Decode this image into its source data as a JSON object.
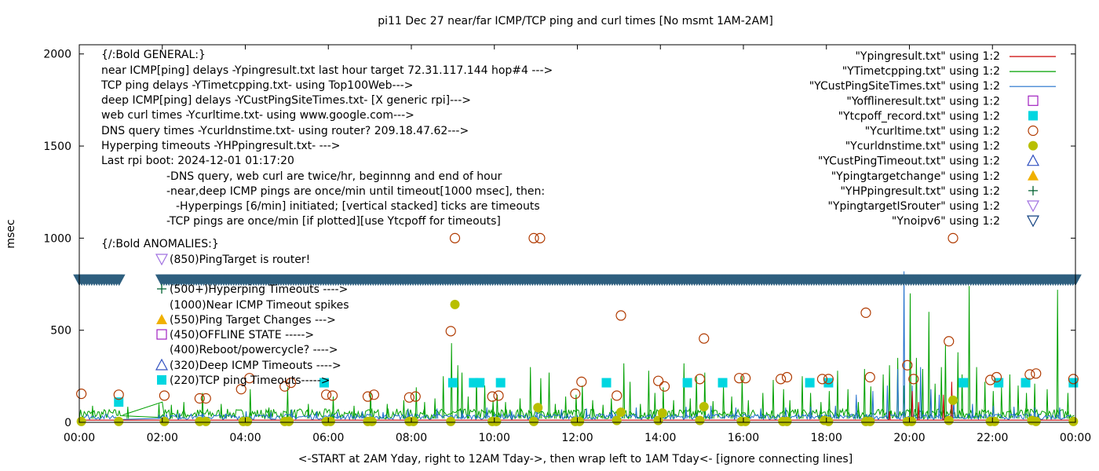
{
  "chart_data": {
    "type": "line",
    "title": "pi11 Dec 27  near/far ICMP/TCP ping and curl times [No msmt 1AM-2AM]",
    "xlabel": "<-START at 2AM Yday, right to 12AM Tday->, then wrap left to 1AM Tday<- [ignore connecting lines]",
    "ylabel": "msec",
    "xlim": [
      0,
      24
    ],
    "ylim": [
      0,
      2050
    ],
    "xticks": [
      {
        "v": 0,
        "label": "00:00"
      },
      {
        "v": 2,
        "label": "02:00"
      },
      {
        "v": 4,
        "label": "04:00"
      },
      {
        "v": 6,
        "label": "06:00"
      },
      {
        "v": 8,
        "label": "08:00"
      },
      {
        "v": 10,
        "label": "10:00"
      },
      {
        "v": 12,
        "label": "12:00"
      },
      {
        "v": 14,
        "label": "14:00"
      },
      {
        "v": 16,
        "label": "16:00"
      },
      {
        "v": 18,
        "label": "18:00"
      },
      {
        "v": 20,
        "label": "20:00"
      },
      {
        "v": 22,
        "label": "22:00"
      },
      {
        "v": 24,
        "label": "00:00"
      }
    ],
    "yticks": [
      {
        "v": 0,
        "label": "0"
      },
      {
        "v": 500,
        "label": "500"
      },
      {
        "v": 1000,
        "label": "1000"
      },
      {
        "v": 1500,
        "label": "1500"
      },
      {
        "v": 2000,
        "label": "2000"
      }
    ],
    "legend_position": "top-right",
    "legend": [
      {
        "label": "\"Ypingresult.txt\" using 1:2",
        "kind": "line",
        "color": "#cc0000"
      },
      {
        "label": "\"YTimetcpping.txt\" using 1:2",
        "kind": "line",
        "color": "#00a000"
      },
      {
        "label": "\"YCustPingSiteTimes.txt\" using 1:2",
        "kind": "line",
        "color": "#1f6fcc"
      },
      {
        "label": "\"Yofflineresult.txt\" using 1:2",
        "kind": "square-open",
        "color": "#a020c0"
      },
      {
        "label": "\"Ytcpoff_record.txt\" using 1:2",
        "kind": "square-filled",
        "color": "#00d6e0"
      },
      {
        "label": "\"Ycurltime.txt\" using 1:2",
        "kind": "circle-open",
        "color": "#b03a00"
      },
      {
        "label": "\"Ycurldnstime.txt\" using 1:2",
        "kind": "circle-filled",
        "color": "#b8bf00"
      },
      {
        "label": "\"YCustPingTimeout.txt\" using 1:2",
        "kind": "triangle-up-open",
        "color": "#3050c0"
      },
      {
        "label": "\"Ypingtargetchange\" using 1:2",
        "kind": "triangle-up-filled",
        "color": "#f0b000"
      },
      {
        "label": "\"YHPpingresult.txt\" using 1:2",
        "kind": "plus",
        "color": "#006030"
      },
      {
        "label": "\"YpingtargetISrouter\" using 1:2",
        "kind": "triangle-down-open",
        "color": "#a070e0"
      },
      {
        "label": "\"Ynoipv6\" using 1:2",
        "kind": "triangle-down-open",
        "color": "#104080"
      }
    ],
    "annotations": [
      {
        "text": "{/:Bold GENERAL:}",
        "ax": 129,
        "ay": 74
      },
      {
        "text": "near ICMP[ping] delays -Ypingresult.txt last hour target 72.31.117.144 hop#4 --->",
        "ax": 129,
        "ay": 94
      },
      {
        "text": "TCP ping delays -YTimetcpping.txt- using Top100Web--->",
        "ax": 129,
        "ay": 113
      },
      {
        "text": "deep ICMP[ping] delays -YCustPingSiteTimes.txt- [X generic rpi]--->",
        "ax": 129,
        "ay": 132
      },
      {
        "text": "web curl times -Ycurltime.txt- using www.google.com--->",
        "ax": 129,
        "ay": 151
      },
      {
        "text": "DNS query times -Ycurldnstime.txt- using router? 209.18.47.62--->",
        "ax": 129,
        "ay": 171
      },
      {
        "text": "Hyperping timeouts -YHPpingresult.txt- --->",
        "ax": 129,
        "ay": 190
      },
      {
        "text": "Last rpi boot: 2024-12-01 01:17:20",
        "ax": 129,
        "ay": 209
      },
      {
        "text": "-DNS query, web curl are twice/hr, beginnng and end of hour",
        "ax": 212,
        "ay": 229
      },
      {
        "text": "-near,deep ICMP pings are once/min until timeout[1000 msec], then:",
        "ax": 212,
        "ay": 248
      },
      {
        "text": "-Hyperpings [6/min] initiated; [vertical stacked] ticks are timeouts",
        "ax": 224,
        "ay": 267
      },
      {
        "text": "-TCP pings are once/min [if plotted][use Ytcpoff for timeouts]",
        "ax": 212,
        "ay": 286
      },
      {
        "text": "{/:Bold ANOMALIES:}",
        "ax": 129,
        "ay": 315
      },
      {
        "text": "(850)PingTarget is router!",
        "ax": 216,
        "ay": 335,
        "marker": "triangle-down-open",
        "mcolor": "#a070e0"
      },
      {
        "text": "(500+)Hyperping Timeouts ---->",
        "ax": 216,
        "ay": 373,
        "marker": "plus",
        "mcolor": "#006030"
      },
      {
        "text": "(1000)Near ICMP Timeout spikes",
        "ax": 216,
        "ay": 393
      },
      {
        "text": "(550)Ping Target Changes --->",
        "ax": 216,
        "ay": 412,
        "marker": "triangle-up-filled",
        "mcolor": "#f0b000"
      },
      {
        "text": "(450)OFFLINE STATE ----->",
        "ax": 216,
        "ay": 431,
        "marker": "square-open",
        "mcolor": "#a020c0"
      },
      {
        "text": "(400)Reboot/powercycle? ---->",
        "ax": 216,
        "ay": 450
      },
      {
        "text": "(320)Deep ICMP Timeouts ---->",
        "ax": 216,
        "ay": 470,
        "marker": "triangle-up-open",
        "mcolor": "#3050c0"
      },
      {
        "text": "(220)TCP ping Timeouts----->",
        "ax": 216,
        "ay": 489,
        "marker": "square-filled",
        "mcolor": "#00d6e0"
      }
    ],
    "ipv6_band": {
      "y": 775,
      "color": "#2e5f7f",
      "gap": [
        1.02,
        1.95
      ]
    },
    "curltime": [
      [
        0.05,
        155
      ],
      [
        0.95,
        150
      ],
      [
        2.05,
        145
      ],
      [
        2.9,
        130
      ],
      [
        3.05,
        130
      ],
      [
        3.9,
        180
      ],
      [
        4.1,
        240
      ],
      [
        4.95,
        195
      ],
      [
        5.1,
        215
      ],
      [
        5.95,
        150
      ],
      [
        6.1,
        145
      ],
      [
        6.95,
        140
      ],
      [
        7.1,
        150
      ],
      [
        7.95,
        135
      ],
      [
        8.1,
        140
      ],
      [
        8.95,
        495
      ],
      [
        9.05,
        1000
      ],
      [
        9.95,
        140
      ],
      [
        10.1,
        145
      ],
      [
        10.95,
        1000
      ],
      [
        11.1,
        1000
      ],
      [
        11.95,
        155
      ],
      [
        12.1,
        220
      ],
      [
        12.95,
        145
      ],
      [
        13.05,
        580
      ],
      [
        13.95,
        225
      ],
      [
        14.1,
        195
      ],
      [
        14.95,
        235
      ],
      [
        15.05,
        455
      ],
      [
        15.9,
        240
      ],
      [
        16.05,
        240
      ],
      [
        16.9,
        235
      ],
      [
        17.05,
        245
      ],
      [
        17.9,
        235
      ],
      [
        18.05,
        235
      ],
      [
        18.95,
        595
      ],
      [
        19.05,
        245
      ],
      [
        19.95,
        310
      ],
      [
        20.1,
        235
      ],
      [
        20.95,
        440
      ],
      [
        21.05,
        1000
      ],
      [
        21.95,
        230
      ],
      [
        22.1,
        245
      ],
      [
        22.9,
        260
      ],
      [
        23.05,
        265
      ],
      [
        23.95,
        235
      ]
    ],
    "dnstime": [
      [
        0.05,
        5
      ],
      [
        0.95,
        5
      ],
      [
        2.05,
        5
      ],
      [
        2.9,
        5
      ],
      [
        3.05,
        5
      ],
      [
        3.95,
        5
      ],
      [
        4.05,
        5
      ],
      [
        4.95,
        5
      ],
      [
        5.05,
        5
      ],
      [
        5.95,
        5
      ],
      [
        6.05,
        5
      ],
      [
        6.95,
        5
      ],
      [
        7.05,
        5
      ],
      [
        7.95,
        5
      ],
      [
        8.05,
        5
      ],
      [
        8.95,
        5
      ],
      [
        9.05,
        640
      ],
      [
        9.95,
        5
      ],
      [
        10.05,
        5
      ],
      [
        10.95,
        5
      ],
      [
        11.05,
        80
      ],
      [
        11.95,
        5
      ],
      [
        12.05,
        5
      ],
      [
        12.95,
        10
      ],
      [
        13.05,
        55
      ],
      [
        13.95,
        10
      ],
      [
        14.05,
        50
      ],
      [
        14.95,
        10
      ],
      [
        15.05,
        85
      ],
      [
        15.95,
        5
      ],
      [
        16.05,
        5
      ],
      [
        16.95,
        5
      ],
      [
        17.05,
        5
      ],
      [
        17.95,
        10
      ],
      [
        18.05,
        5
      ],
      [
        18.95,
        5
      ],
      [
        19.05,
        5
      ],
      [
        19.95,
        5
      ],
      [
        20.05,
        5
      ],
      [
        20.95,
        10
      ],
      [
        21.05,
        120
      ],
      [
        21.95,
        5
      ],
      [
        22.05,
        5
      ],
      [
        22.95,
        10
      ],
      [
        23.05,
        5
      ],
      [
        23.95,
        5
      ]
    ],
    "tcpoff": [
      [
        0.95,
        110
      ],
      [
        5.9,
        215
      ],
      [
        9.0,
        215
      ],
      [
        9.5,
        215
      ],
      [
        9.65,
        215
      ],
      [
        10.15,
        215
      ],
      [
        12.7,
        215
      ],
      [
        14.65,
        215
      ],
      [
        15.5,
        215
      ],
      [
        17.6,
        215
      ],
      [
        18.05,
        215
      ],
      [
        21.3,
        215
      ],
      [
        22.15,
        215
      ],
      [
        22.8,
        215
      ],
      [
        23.95,
        215
      ]
    ],
    "near_ping_spikes": [
      [
        1.0,
        20
      ],
      [
        19.5,
        60
      ],
      [
        20.05,
        170
      ],
      [
        20.2,
        110
      ],
      [
        20.8,
        150
      ],
      [
        21.0,
        220
      ]
    ],
    "tcp_spikes": [
      [
        0.3,
        90
      ],
      [
        1.15,
        85
      ],
      [
        1.9,
        100
      ],
      [
        2.2,
        95
      ],
      [
        2.5,
        110
      ],
      [
        2.95,
        160
      ],
      [
        3.4,
        100
      ],
      [
        4.1,
        180
      ],
      [
        4.55,
        80
      ],
      [
        5.0,
        190
      ],
      [
        5.5,
        100
      ],
      [
        6.1,
        140
      ],
      [
        6.6,
        90
      ],
      [
        7.0,
        170
      ],
      [
        7.4,
        100
      ],
      [
        7.8,
        120
      ],
      [
        8.1,
        190
      ],
      [
        8.3,
        110
      ],
      [
        8.55,
        130
      ],
      [
        8.75,
        250
      ],
      [
        8.95,
        430
      ],
      [
        9.1,
        310
      ],
      [
        9.2,
        270
      ],
      [
        9.35,
        140
      ],
      [
        9.55,
        240
      ],
      [
        9.75,
        200
      ],
      [
        9.95,
        120
      ],
      [
        10.05,
        150
      ],
      [
        10.25,
        110
      ],
      [
        10.6,
        130
      ],
      [
        10.85,
        300
      ],
      [
        11.1,
        240
      ],
      [
        11.3,
        270
      ],
      [
        11.45,
        100
      ],
      [
        11.7,
        140
      ],
      [
        11.95,
        150
      ],
      [
        12.1,
        200
      ],
      [
        12.35,
        120
      ],
      [
        12.6,
        95
      ],
      [
        12.8,
        130
      ],
      [
        13.1,
        320
      ],
      [
        13.25,
        220
      ],
      [
        13.5,
        100
      ],
      [
        13.7,
        280
      ],
      [
        13.85,
        160
      ],
      [
        14.05,
        190
      ],
      [
        14.3,
        120
      ],
      [
        14.55,
        320
      ],
      [
        14.7,
        130
      ],
      [
        14.85,
        250
      ],
      [
        15.05,
        270
      ],
      [
        15.25,
        115
      ],
      [
        15.5,
        200
      ],
      [
        15.7,
        140
      ],
      [
        15.95,
        250
      ],
      [
        16.1,
        120
      ],
      [
        16.45,
        160
      ],
      [
        16.7,
        230
      ],
      [
        16.95,
        180
      ],
      [
        17.1,
        120
      ],
      [
        17.4,
        250
      ],
      [
        17.6,
        160
      ],
      [
        17.85,
        110
      ],
      [
        18.05,
        170
      ],
      [
        18.25,
        280
      ],
      [
        18.5,
        180
      ],
      [
        18.75,
        110
      ],
      [
        18.9,
        290
      ],
      [
        19.05,
        195
      ],
      [
        19.35,
        260
      ],
      [
        19.5,
        310
      ],
      [
        19.7,
        350
      ],
      [
        19.85,
        200
      ],
      [
        20.0,
        700
      ],
      [
        20.15,
        350
      ],
      [
        20.3,
        290
      ],
      [
        20.45,
        600
      ],
      [
        20.6,
        210
      ],
      [
        20.75,
        300
      ],
      [
        20.85,
        420
      ],
      [
        21.0,
        190
      ],
      [
        21.15,
        380
      ],
      [
        21.25,
        260
      ],
      [
        21.42,
        740
      ],
      [
        21.6,
        300
      ],
      [
        21.8,
        220
      ],
      [
        22.0,
        170
      ],
      [
        22.2,
        190
      ],
      [
        22.4,
        260
      ],
      [
        22.6,
        200
      ],
      [
        22.8,
        160
      ],
      [
        23.0,
        210
      ],
      [
        23.3,
        180
      ],
      [
        23.55,
        720
      ],
      [
        23.8,
        160
      ]
    ],
    "cust_spikes": [
      [
        1.9,
        40
      ],
      [
        2.4,
        50
      ],
      [
        2.95,
        50
      ],
      [
        3.5,
        45
      ],
      [
        4.0,
        60
      ],
      [
        4.6,
        55
      ],
      [
        5.1,
        70
      ],
      [
        5.7,
        60
      ],
      [
        6.2,
        55
      ],
      [
        6.8,
        60
      ],
      [
        7.3,
        55
      ],
      [
        7.9,
        70
      ],
      [
        8.6,
        75
      ],
      [
        9.2,
        65
      ],
      [
        9.8,
        80
      ],
      [
        10.4,
        60
      ],
      [
        11.0,
        100
      ],
      [
        11.6,
        70
      ],
      [
        12.2,
        75
      ],
      [
        12.8,
        70
      ],
      [
        13.4,
        80
      ],
      [
        14.0,
        75
      ],
      [
        14.6,
        85
      ],
      [
        15.2,
        90
      ],
      [
        15.8,
        80
      ],
      [
        16.4,
        75
      ],
      [
        17.0,
        80
      ],
      [
        17.6,
        85
      ],
      [
        18.2,
        90
      ],
      [
        18.7,
        150
      ],
      [
        19.1,
        170
      ],
      [
        19.45,
        200
      ],
      [
        19.7,
        290
      ],
      [
        19.85,
        820
      ],
      [
        20.05,
        200
      ],
      [
        20.25,
        300
      ],
      [
        20.5,
        180
      ],
      [
        20.7,
        150
      ],
      [
        21.05,
        130
      ],
      [
        21.5,
        100
      ],
      [
        22.0,
        90
      ],
      [
        22.5,
        85
      ],
      [
        23.0,
        80
      ],
      [
        23.6,
        80
      ]
    ]
  }
}
